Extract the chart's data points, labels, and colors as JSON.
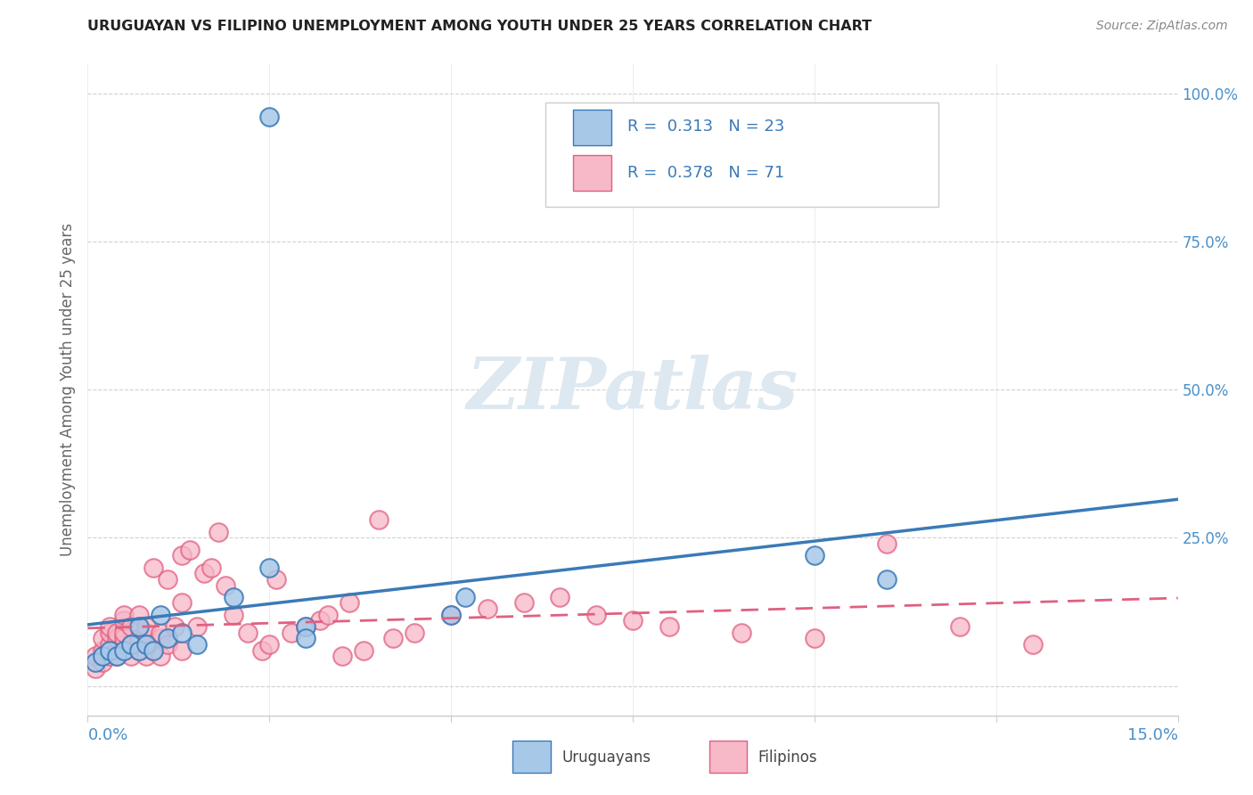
{
  "title": "URUGUAYAN VS FILIPINO UNEMPLOYMENT AMONG YOUTH UNDER 25 YEARS CORRELATION CHART",
  "source": "Source: ZipAtlas.com",
  "ylabel": "Unemployment Among Youth under 25 years",
  "xlim": [
    0.0,
    0.15
  ],
  "ylim": [
    -0.05,
    1.05
  ],
  "legend_uruguayan": "Uruguayans",
  "legend_filipino": "Filipinos",
  "R_uruguayan": 0.313,
  "N_uruguayan": 23,
  "R_filipino": 0.378,
  "N_filipino": 71,
  "blue_fill": "#a8c8e8",
  "blue_line": "#3a7ab8",
  "pink_fill": "#f7b8c8",
  "pink_line": "#e06080",
  "watermark_color": "#dde8f0",
  "uruguayan_x": [
    0.001,
    0.002,
    0.003,
    0.004,
    0.005,
    0.006,
    0.007,
    0.007,
    0.008,
    0.009,
    0.01,
    0.011,
    0.013,
    0.015,
    0.02,
    0.025,
    0.03,
    0.03,
    0.05,
    0.052,
    0.1,
    0.11,
    0.025
  ],
  "uruguayan_y": [
    0.04,
    0.05,
    0.06,
    0.05,
    0.06,
    0.07,
    0.06,
    0.1,
    0.07,
    0.06,
    0.12,
    0.08,
    0.09,
    0.07,
    0.15,
    0.2,
    0.1,
    0.08,
    0.12,
    0.15,
    0.22,
    0.18,
    0.96
  ],
  "filipino_x": [
    0.001,
    0.001,
    0.002,
    0.002,
    0.002,
    0.003,
    0.003,
    0.003,
    0.003,
    0.004,
    0.004,
    0.004,
    0.004,
    0.005,
    0.005,
    0.005,
    0.005,
    0.005,
    0.006,
    0.006,
    0.006,
    0.007,
    0.007,
    0.007,
    0.008,
    0.008,
    0.008,
    0.009,
    0.009,
    0.01,
    0.01,
    0.01,
    0.011,
    0.011,
    0.012,
    0.013,
    0.013,
    0.013,
    0.014,
    0.015,
    0.016,
    0.017,
    0.018,
    0.019,
    0.02,
    0.022,
    0.024,
    0.025,
    0.026,
    0.028,
    0.03,
    0.032,
    0.033,
    0.035,
    0.036,
    0.038,
    0.04,
    0.042,
    0.045,
    0.05,
    0.055,
    0.06,
    0.065,
    0.07,
    0.075,
    0.08,
    0.09,
    0.1,
    0.11,
    0.12,
    0.13
  ],
  "filipino_y": [
    0.03,
    0.05,
    0.04,
    0.06,
    0.08,
    0.05,
    0.07,
    0.09,
    0.1,
    0.06,
    0.08,
    0.09,
    0.05,
    0.07,
    0.08,
    0.09,
    0.11,
    0.12,
    0.05,
    0.07,
    0.1,
    0.08,
    0.12,
    0.06,
    0.09,
    0.1,
    0.05,
    0.06,
    0.2,
    0.08,
    0.09,
    0.05,
    0.07,
    0.18,
    0.1,
    0.22,
    0.14,
    0.06,
    0.23,
    0.1,
    0.19,
    0.2,
    0.26,
    0.17,
    0.12,
    0.09,
    0.06,
    0.07,
    0.18,
    0.09,
    0.1,
    0.11,
    0.12,
    0.05,
    0.14,
    0.06,
    0.28,
    0.08,
    0.09,
    0.12,
    0.13,
    0.14,
    0.15,
    0.12,
    0.11,
    0.1,
    0.09,
    0.08,
    0.24,
    0.1,
    0.07
  ]
}
